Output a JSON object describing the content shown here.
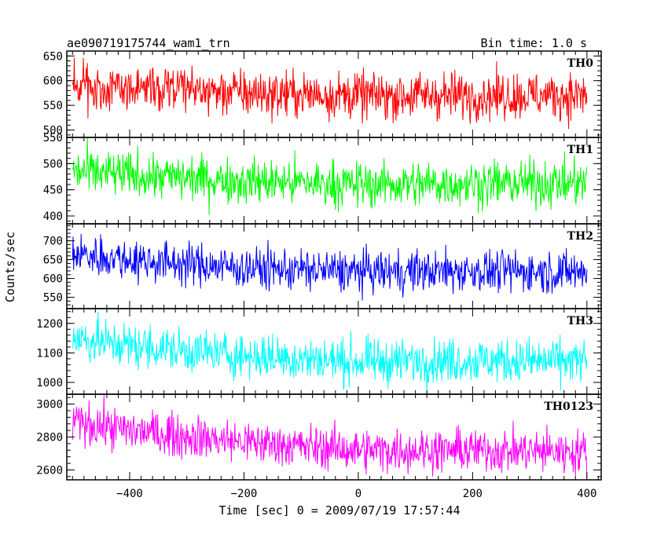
{
  "header": {
    "title": "ae090719175744_wam1_trn",
    "bin_time": "Bin time: 1.0 s"
  },
  "chart_data": {
    "type": "line",
    "title": "ae090719175744_wam1_trn",
    "xlabel": "Time [sec] 0 = 2009/07/19 17:57:44",
    "ylabel": "Counts/sec",
    "xlim": [
      -510,
      425
    ],
    "x_ticks": [
      -400,
      -200,
      0,
      200,
      400
    ],
    "x_tick_labels": [
      "−400",
      "−200",
      "0",
      "200",
      "400"
    ],
    "x_range": [
      -500,
      400
    ],
    "bin_time_s": 1.0,
    "grid": false,
    "legend": "none",
    "panels": [
      {
        "name": "TH0",
        "color": "#ff0000",
        "ylim": [
          485,
          660
        ],
        "y_ticks": [
          500,
          550,
          600,
          650
        ],
        "trend": [
          [
            -500,
            590
          ],
          [
            -400,
            587
          ],
          [
            -200,
            575
          ],
          [
            0,
            570
          ],
          [
            200,
            570
          ],
          [
            400,
            570
          ]
        ],
        "noise": 24
      },
      {
        "name": "TH1",
        "color": "#00ff00",
        "ylim": [
          385,
          550
        ],
        "y_ticks": [
          400,
          450,
          500,
          550
        ],
        "trend": [
          [
            -500,
            485
          ],
          [
            -400,
            478
          ],
          [
            -200,
            467
          ],
          [
            0,
            460
          ],
          [
            200,
            462
          ],
          [
            400,
            462
          ]
        ],
        "noise": 22
      },
      {
        "name": "TH2",
        "color": "#0000ff",
        "ylim": [
          520,
          745
        ],
        "y_ticks": [
          550,
          600,
          650,
          700
        ],
        "trend": [
          [
            -500,
            665
          ],
          [
            -400,
            650
          ],
          [
            -200,
            628
          ],
          [
            0,
            618
          ],
          [
            200,
            620
          ],
          [
            400,
            618
          ]
        ],
        "noise": 28
      },
      {
        "name": "TH3",
        "color": "#00ffff",
        "ylim": [
          960,
          1250
        ],
        "y_ticks": [
          1000,
          1100,
          1200
        ],
        "trend": [
          [
            -500,
            1150
          ],
          [
            -400,
            1125
          ],
          [
            -200,
            1090
          ],
          [
            0,
            1070
          ],
          [
            200,
            1075
          ],
          [
            400,
            1070
          ]
        ],
        "noise": 38
      },
      {
        "name": "TH0123",
        "color": "#ff00ff",
        "ylim": [
          2540,
          3060
        ],
        "y_ticks": [
          2600,
          2800,
          3000
        ],
        "trend": [
          [
            -500,
            2890
          ],
          [
            -400,
            2840
          ],
          [
            -200,
            2770
          ],
          [
            0,
            2720
          ],
          [
            200,
            2720
          ],
          [
            400,
            2710
          ]
        ],
        "noise": 65
      }
    ]
  }
}
